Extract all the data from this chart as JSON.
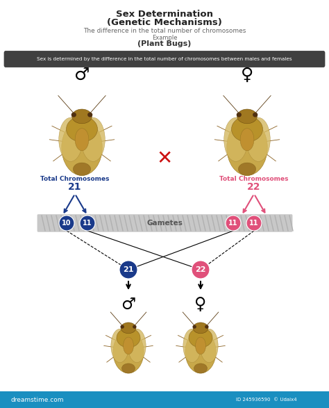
{
  "title_line1": "Sex Determination",
  "title_line2": "(Genetic Mechanisms)",
  "subtitle1": "The difference in the total number of chromosomes",
  "subtitle2": "Example",
  "subtitle3": "(Plant Bugs)",
  "banner_text": "Sex is determined by the difference in the total number of chromosomes between males and females",
  "male_label": "Total Chromosomes",
  "male_number": "21",
  "female_label": "Total Chromosomes",
  "female_number": "22",
  "gametes_label": "Gametes",
  "blue_gamete1": "10",
  "blue_gamete2": "11",
  "pink_gamete1": "11",
  "pink_gamete2": "11",
  "offspring_blue": "21",
  "offspring_pink": "22",
  "blue_color": "#1a3a8a",
  "pink_color": "#e0507a",
  "title_color": "#222222",
  "banner_bg": "#404040",
  "banner_text_color": "#ffffff",
  "gamete_bar_color": "#c8c8c8",
  "bg_color": "#ffffff",
  "watermark_bg": "#1a8fc0",
  "bug_body1": "#c8a84a",
  "bug_body2": "#b8922a",
  "bug_head": "#a07820",
  "bug_leg": "#8a6020"
}
